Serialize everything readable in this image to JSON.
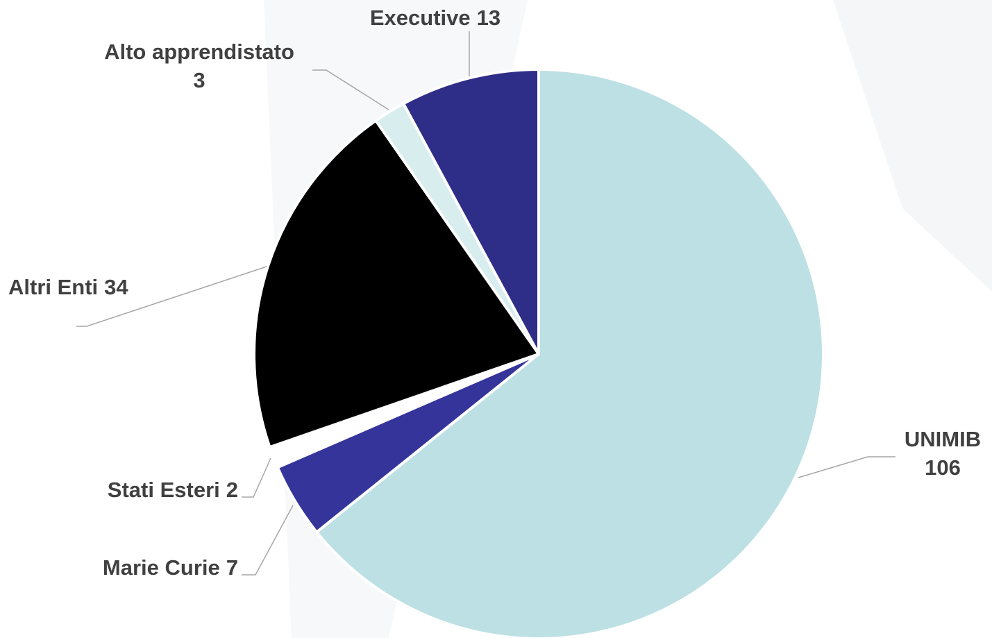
{
  "chart_data": {
    "type": "pie",
    "categories": [
      "UNIMIB",
      "Marie Curie",
      "Stati Esteri",
      "Altri Enti",
      "Alto apprendistato",
      "Executive"
    ],
    "values": [
      106,
      7,
      2,
      34,
      3,
      13
    ],
    "colors": [
      "#bce0e3",
      "#35349a",
      "#ffffff",
      "#000000",
      "#d8eeee",
      "#2e2d88"
    ]
  }
}
